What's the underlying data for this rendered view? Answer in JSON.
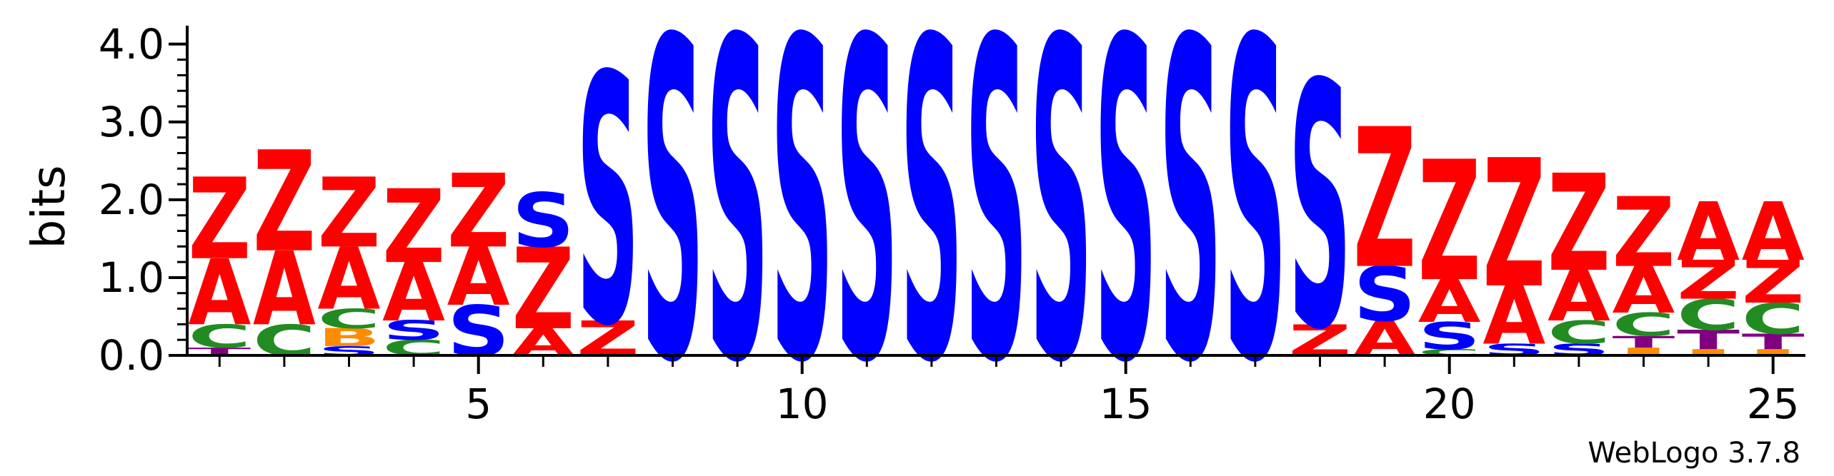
{
  "chart_data": {
    "type": "sequence-logo",
    "ylabel": "bits",
    "ylim": [
      0,
      4.2
    ],
    "y_ticks": [
      {
        "value": 0,
        "label": "0.0"
      },
      {
        "value": 1,
        "label": "1.0"
      },
      {
        "value": 2,
        "label": "2.0"
      },
      {
        "value": 3,
        "label": "3.0"
      },
      {
        "value": 4,
        "label": "4.0"
      }
    ],
    "x_range": [
      0.5,
      25.5
    ],
    "x_ticks": [
      {
        "value": 5,
        "label": "5"
      },
      {
        "value": 10,
        "label": "10"
      },
      {
        "value": 15,
        "label": "15"
      },
      {
        "value": 20,
        "label": "20"
      },
      {
        "value": 25,
        "label": "25"
      }
    ],
    "footer": "WebLogo 3.7.8",
    "colors": {
      "Z": "#ff0000",
      "A": "#ff0000",
      "S": "#0000ff",
      "C": "#228b22",
      "T": "#800080",
      "B": "#ff8c00",
      "I": "#ff8c00"
    },
    "positions": [
      {
        "pos": 1,
        "stack": [
          {
            "letter": "T",
            "height": 0.1
          },
          {
            "letter": "C",
            "height": 0.3
          },
          {
            "letter": "A",
            "height": 0.85
          },
          {
            "letter": "Z",
            "height": 1.05
          }
        ]
      },
      {
        "pos": 2,
        "stack": [
          {
            "letter": "C",
            "height": 0.4
          },
          {
            "letter": "A",
            "height": 0.95
          },
          {
            "letter": "Z",
            "height": 1.3
          }
        ]
      },
      {
        "pos": 3,
        "stack": [
          {
            "letter": "S",
            "height": 0.12
          },
          {
            "letter": "B",
            "height": 0.23
          },
          {
            "letter": "C",
            "height": 0.25
          },
          {
            "letter": "A",
            "height": 0.8
          },
          {
            "letter": "Z",
            "height": 0.9
          }
        ]
      },
      {
        "pos": 4,
        "stack": [
          {
            "letter": "C",
            "height": 0.2
          },
          {
            "letter": "S",
            "height": 0.25
          },
          {
            "letter": "A",
            "height": 0.75
          },
          {
            "letter": "Z",
            "height": 0.95
          }
        ]
      },
      {
        "pos": 5,
        "stack": [
          {
            "letter": "S",
            "height": 0.65
          },
          {
            "letter": "A",
            "height": 0.75
          },
          {
            "letter": "Z",
            "height": 0.95
          }
        ]
      },
      {
        "pos": 6,
        "stack": [
          {
            "letter": "A",
            "height": 0.35
          },
          {
            "letter": "Z",
            "height": 1.05
          },
          {
            "letter": "S",
            "height": 0.7
          }
        ]
      },
      {
        "pos": 7,
        "stack": [
          {
            "letter": "Z",
            "height": 0.45
          },
          {
            "letter": "S",
            "height": 3.2
          }
        ]
      },
      {
        "pos": 8,
        "stack": [
          {
            "letter": "S",
            "height": 4.12
          }
        ]
      },
      {
        "pos": 9,
        "stack": [
          {
            "letter": "S",
            "height": 4.12
          }
        ]
      },
      {
        "pos": 10,
        "stack": [
          {
            "letter": "S",
            "height": 4.12
          }
        ]
      },
      {
        "pos": 11,
        "stack": [
          {
            "letter": "S",
            "height": 4.12
          }
        ]
      },
      {
        "pos": 12,
        "stack": [
          {
            "letter": "S",
            "height": 4.12
          }
        ]
      },
      {
        "pos": 13,
        "stack": [
          {
            "letter": "S",
            "height": 4.12
          }
        ]
      },
      {
        "pos": 14,
        "stack": [
          {
            "letter": "S",
            "height": 4.12
          }
        ]
      },
      {
        "pos": 15,
        "stack": [
          {
            "letter": "S",
            "height": 4.12
          }
        ]
      },
      {
        "pos": 16,
        "stack": [
          {
            "letter": "S",
            "height": 4.12
          }
        ]
      },
      {
        "pos": 17,
        "stack": [
          {
            "letter": "S",
            "height": 4.12
          }
        ]
      },
      {
        "pos": 18,
        "stack": [
          {
            "letter": "Z",
            "height": 0.4
          },
          {
            "letter": "S",
            "height": 3.15
          }
        ]
      },
      {
        "pos": 19,
        "stack": [
          {
            "letter": "A",
            "height": 0.45
          },
          {
            "letter": "S",
            "height": 0.7
          },
          {
            "letter": "Z",
            "height": 1.8
          }
        ]
      },
      {
        "pos": 20,
        "stack": [
          {
            "letter": "C",
            "height": 0.08
          },
          {
            "letter": "S",
            "height": 0.35
          },
          {
            "letter": "A",
            "height": 0.55
          },
          {
            "letter": "Z",
            "height": 1.55
          }
        ]
      },
      {
        "pos": 21,
        "stack": [
          {
            "letter": "S",
            "height": 0.15
          },
          {
            "letter": "A",
            "height": 0.75
          },
          {
            "letter": "Z",
            "height": 1.65
          }
        ]
      },
      {
        "pos": 22,
        "stack": [
          {
            "letter": "S",
            "height": 0.15
          },
          {
            "letter": "C",
            "height": 0.3
          },
          {
            "letter": "A",
            "height": 0.65
          },
          {
            "letter": "Z",
            "height": 1.25
          }
        ]
      },
      {
        "pos": 23,
        "stack": [
          {
            "letter": "I",
            "height": 0.1
          },
          {
            "letter": "T",
            "height": 0.15
          },
          {
            "letter": "C",
            "height": 0.3
          },
          {
            "letter": "A",
            "height": 0.6
          },
          {
            "letter": "Z",
            "height": 0.9
          }
        ]
      },
      {
        "pos": 24,
        "stack": [
          {
            "letter": "I",
            "height": 0.08
          },
          {
            "letter": "T",
            "height": 0.25
          },
          {
            "letter": "C",
            "height": 0.4
          },
          {
            "letter": "Z",
            "height": 0.5
          },
          {
            "letter": "A",
            "height": 0.75
          }
        ]
      },
      {
        "pos": 25,
        "stack": [
          {
            "letter": "I",
            "height": 0.08
          },
          {
            "letter": "T",
            "height": 0.2
          },
          {
            "letter": "C",
            "height": 0.4
          },
          {
            "letter": "Z",
            "height": 0.55
          },
          {
            "letter": "A",
            "height": 0.75
          }
        ]
      }
    ]
  }
}
